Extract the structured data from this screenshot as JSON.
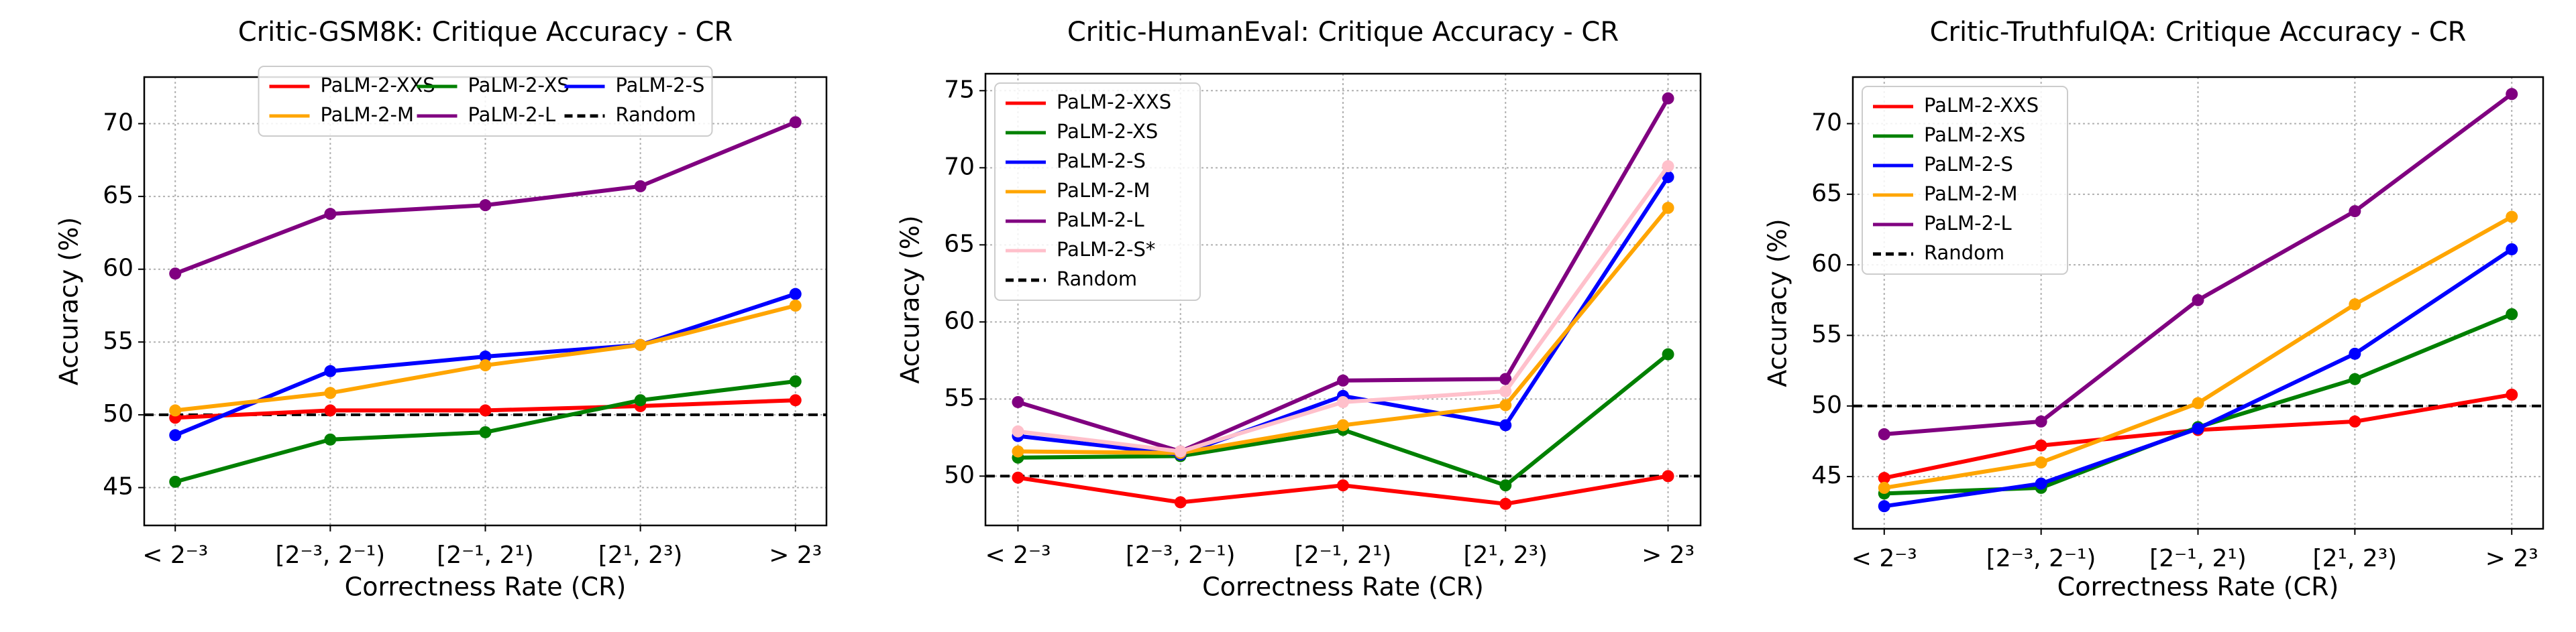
{
  "chart_data": [
    {
      "type": "line",
      "title": "Critic-GSM8K: Critique Accuracy - CR",
      "x_label": "Correctness Rate (CR)",
      "y_label": "Accuracy (%)",
      "categories": [
        "< 2⁻³",
        "[2⁻³, 2⁻¹)",
        "[2⁻¹, 2¹)",
        "[2¹, 2³)",
        "> 2³"
      ],
      "series": [
        {
          "name": "PaLM-2-XXS",
          "color": "#ff0000",
          "values": [
            49.8,
            50.3,
            50.3,
            50.6,
            51.0
          ]
        },
        {
          "name": "PaLM-2-XS",
          "color": "#008000",
          "values": [
            45.4,
            48.3,
            48.8,
            51.0,
            52.3
          ]
        },
        {
          "name": "PaLM-2-S",
          "color": "#0000ff",
          "values": [
            48.6,
            53.0,
            54.0,
            54.8,
            58.3
          ]
        },
        {
          "name": "PaLM-2-M",
          "color": "#ffa500",
          "values": [
            50.3,
            51.5,
            53.4,
            54.8,
            57.5
          ]
        },
        {
          "name": "PaLM-2-L",
          "color": "#800080",
          "values": [
            59.7,
            63.8,
            64.4,
            65.7,
            70.1
          ]
        }
      ],
      "reference_line": {
        "name": "Random",
        "value": 50,
        "color": "#000000"
      },
      "ylim": [
        42.4,
        73.2
      ],
      "yticks": [
        45,
        50,
        55,
        60,
        65,
        70
      ],
      "grid": true,
      "legend": "upper center",
      "legend_columns": 3
    },
    {
      "type": "line",
      "title": "Critic-HumanEval: Critique Accuracy - CR",
      "x_label": "Correctness Rate (CR)",
      "y_label": "Accuracy (%)",
      "categories": [
        "< 2⁻³",
        "[2⁻³, 2⁻¹)",
        "[2⁻¹, 2¹)",
        "[2¹, 2³)",
        "> 2³"
      ],
      "series": [
        {
          "name": "PaLM-2-XXS",
          "color": "#ff0000",
          "values": [
            49.9,
            48.3,
            49.4,
            48.2,
            50.0
          ]
        },
        {
          "name": "PaLM-2-XS",
          "color": "#008000",
          "values": [
            51.2,
            51.3,
            53.0,
            49.4,
            57.9
          ]
        },
        {
          "name": "PaLM-2-S",
          "color": "#0000ff",
          "values": [
            52.6,
            51.4,
            55.2,
            53.3,
            69.4
          ]
        },
        {
          "name": "PaLM-2-M",
          "color": "#ffa500",
          "values": [
            51.6,
            51.5,
            53.3,
            54.6,
            67.4
          ]
        },
        {
          "name": "PaLM-2-L",
          "color": "#800080",
          "values": [
            54.8,
            51.6,
            56.2,
            56.3,
            74.5
          ]
        },
        {
          "name": "PaLM-2-S*",
          "color": "#ffc0cb",
          "values": [
            52.9,
            51.6,
            54.8,
            55.5,
            70.1
          ]
        }
      ],
      "reference_line": {
        "name": "Random",
        "value": 50,
        "color": "#000000"
      },
      "ylim": [
        46.8,
        76.1
      ],
      "yticks": [
        50,
        55,
        60,
        65,
        70,
        75
      ],
      "grid": true,
      "legend": "upper left",
      "legend_columns": 1
    },
    {
      "type": "line",
      "title": "Critic-TruthfulQA: Critique Accuracy - CR",
      "x_label": "Correctness Rate (CR)",
      "y_label": "Accuracy (%)",
      "categories": [
        "< 2⁻³",
        "[2⁻³, 2⁻¹)",
        "[2⁻¹, 2¹)",
        "[2¹, 2³)",
        "> 2³"
      ],
      "series": [
        {
          "name": "PaLM-2-XXS",
          "color": "#ff0000",
          "values": [
            44.9,
            47.2,
            48.3,
            48.9,
            50.8
          ]
        },
        {
          "name": "PaLM-2-XS",
          "color": "#008000",
          "values": [
            43.8,
            44.2,
            48.5,
            51.9,
            56.5
          ]
        },
        {
          "name": "PaLM-2-S",
          "color": "#0000ff",
          "values": [
            42.9,
            44.5,
            48.4,
            53.7,
            61.1
          ]
        },
        {
          "name": "PaLM-2-M",
          "color": "#ffa500",
          "values": [
            44.2,
            46.0,
            50.2,
            57.2,
            63.4
          ]
        },
        {
          "name": "PaLM-2-L",
          "color": "#800080",
          "values": [
            48.0,
            48.9,
            57.5,
            63.8,
            72.1
          ]
        }
      ],
      "reference_line": {
        "name": "Random",
        "value": 50,
        "color": "#000000"
      },
      "ylim": [
        41.3,
        73.3
      ],
      "yticks": [
        45,
        50,
        55,
        60,
        65,
        70
      ],
      "grid": true,
      "legend": "upper left",
      "legend_columns": 1
    }
  ]
}
